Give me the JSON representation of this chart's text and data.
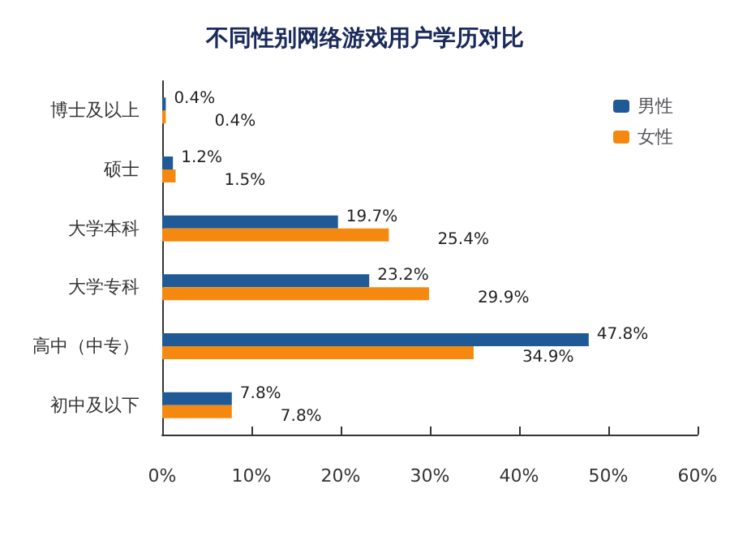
{
  "chart_data": {
    "type": "bar",
    "orientation": "horizontal",
    "title": "不同性别网络游戏用户学历对比",
    "categories": [
      "博士及以上",
      "硕士",
      "大学本科",
      "大学专科",
      "高中（中专）",
      "初中及以下"
    ],
    "series": [
      {
        "name": "男性",
        "color": "#1f5a96",
        "values": [
          0.4,
          1.2,
          19.7,
          23.2,
          47.8,
          7.8
        ],
        "value_labels": [
          "0.4%",
          "1.2%",
          "19.7%",
          "23.2%",
          "47.8%",
          "7.8%"
        ]
      },
      {
        "name": "女性",
        "color": "#f5880f",
        "values": [
          0.4,
          1.5,
          25.4,
          29.9,
          34.9,
          7.8
        ],
        "value_labels": [
          "0.4%",
          "1.5%",
          "25.4%",
          "29.9%",
          "34.9%",
          "7.8%"
        ]
      }
    ],
    "xlim": [
      0,
      60
    ],
    "xticks": [
      {
        "value": 0,
        "label": "0%"
      },
      {
        "value": 10,
        "label": "10%"
      },
      {
        "value": 20,
        "label": "20%"
      },
      {
        "value": 30,
        "label": "30%"
      },
      {
        "value": 40,
        "label": "40%"
      },
      {
        "value": 50,
        "label": "50%"
      },
      {
        "value": 60,
        "label": "60%"
      }
    ],
    "grid": false,
    "legend": "top right"
  }
}
